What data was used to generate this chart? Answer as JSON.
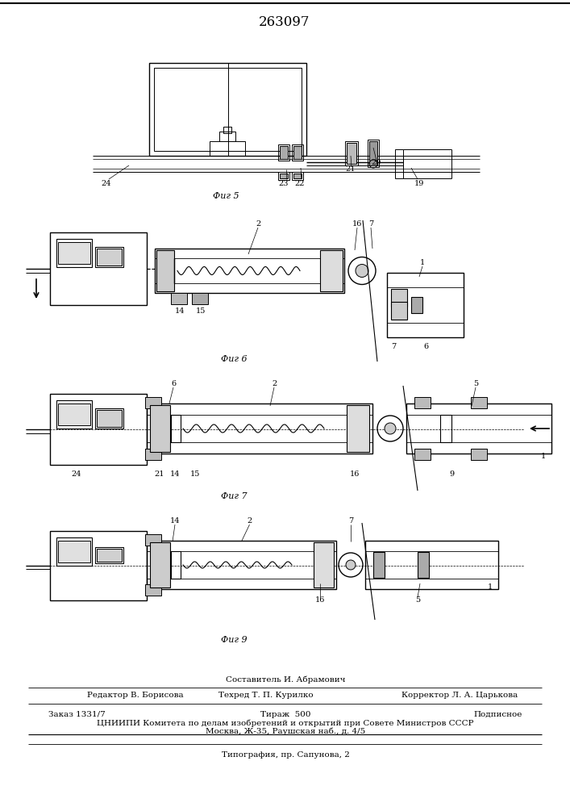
{
  "patent_number": "263097",
  "background_color": "#ffffff",
  "line_color": "#000000",
  "fig5_label": "Фиг 5",
  "fig6_label": "Фиг 6",
  "fig7_label": "Фиг 7",
  "fig9_label": "Фиг 9",
  "footer_line1": "Составитель И. Абрамович",
  "footer_line2_col1": "Редактор В. Борисова",
  "footer_line2_col2": "Техред Т. П. Курилко",
  "footer_line2_col3": "Корректор Л. А. Царькова",
  "footer_line3_col1": "Заказ 1331/7",
  "footer_line3_col2": "Тираж  500",
  "footer_line3_col3": "Подписное",
  "footer_line4": "ЦНИИПИ Комитета по делам изобретений и открытий при Совете Министров СССР",
  "footer_line5": "Москва, Ж-35, Раушская наб., д. 4/5",
  "footer_line6": "Типография, пр. Сапунова, 2"
}
